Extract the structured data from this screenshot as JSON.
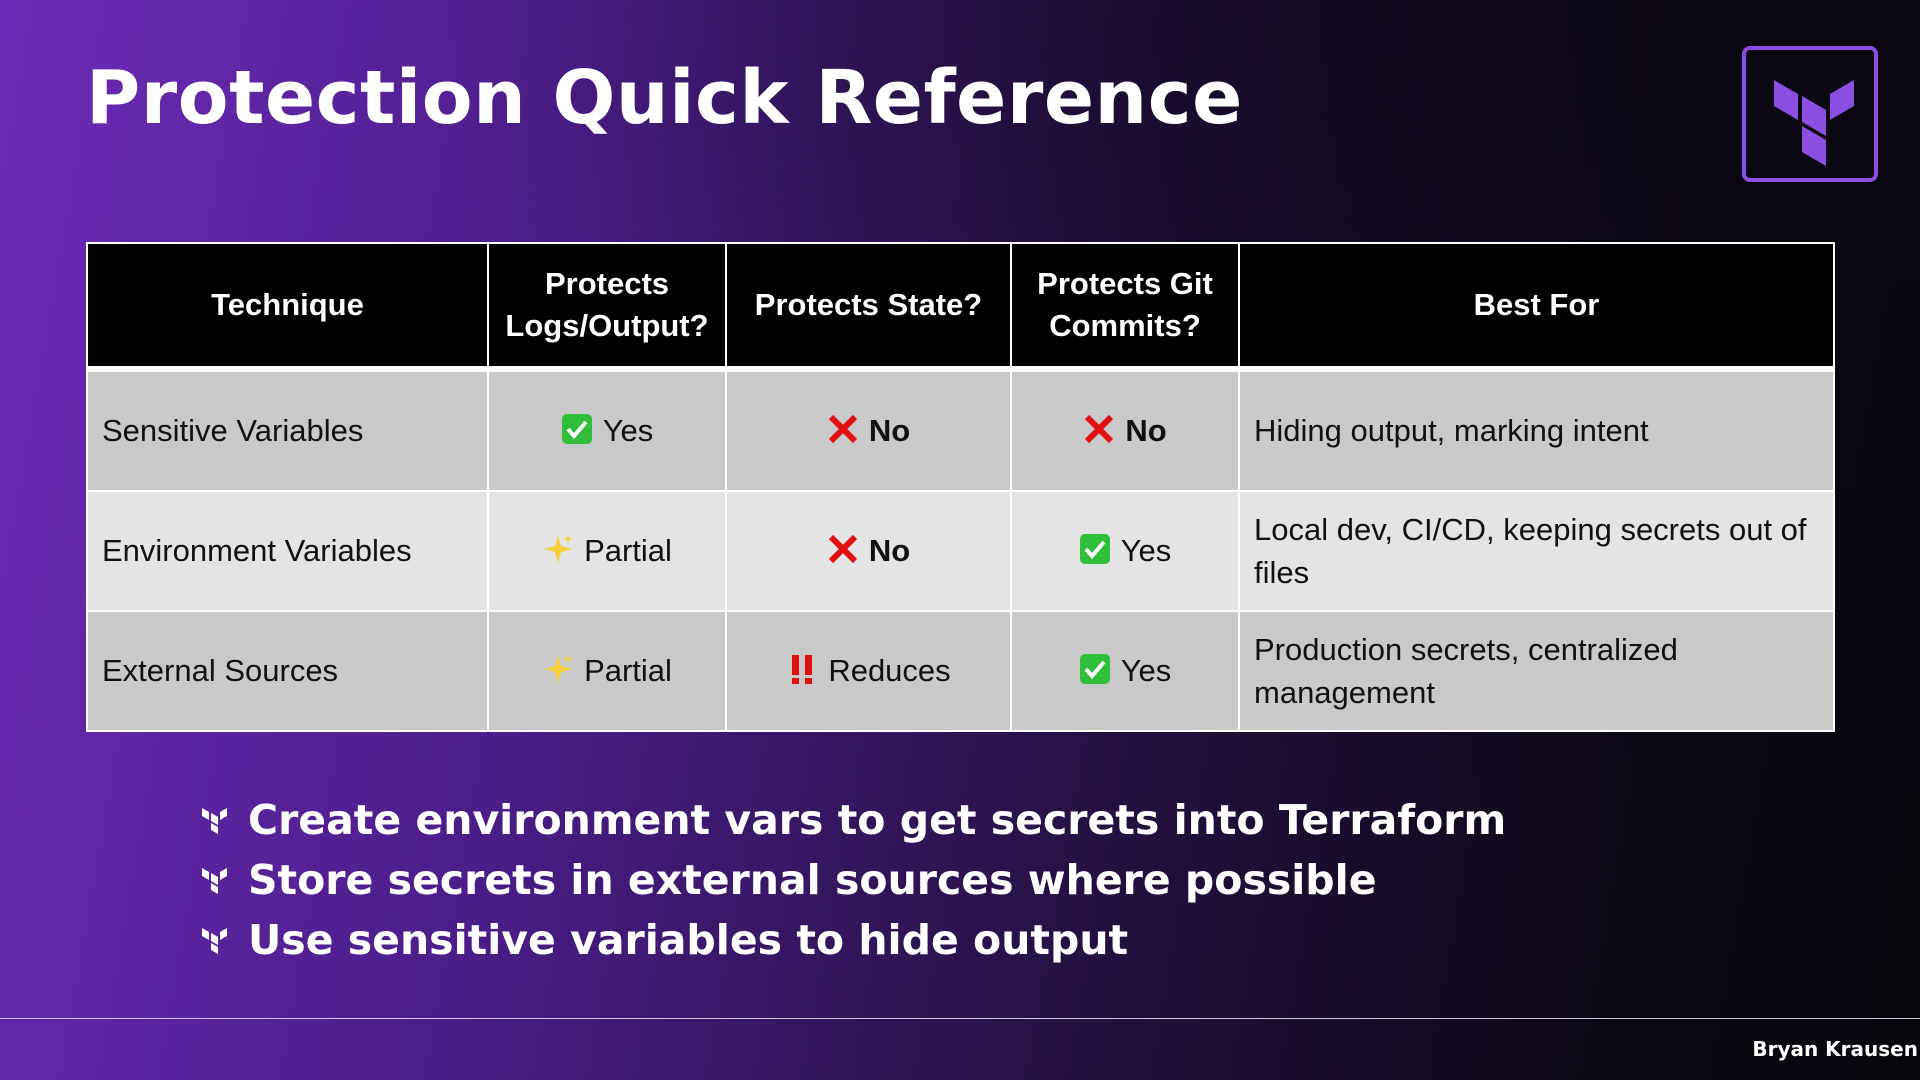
{
  "header": {
    "title": "Protection Quick Reference"
  },
  "table": {
    "columns": [
      "Technique",
      "Protects Logs/Output?",
      "Protects State?",
      "Protects Git Commits?",
      "Best For"
    ],
    "rows": [
      [
        "Sensitive Variables",
        "Yes",
        "No",
        "No",
        "Hiding output, marking intent"
      ],
      [
        "Environment Variables",
        "Partial",
        "No",
        "Yes",
        "Local dev, CI/CD, keeping secrets out of files"
      ],
      [
        "External Sources",
        "Partial",
        "Reduces",
        "Yes",
        "Production secrets, centralized management"
      ]
    ]
  },
  "bullets": [
    "Create environment vars to get secrets into Terraform",
    "Store secrets in external sources where possible",
    "Use sensitive variables to hide output"
  ],
  "footer": {
    "author": "Bryan Krausen"
  }
}
